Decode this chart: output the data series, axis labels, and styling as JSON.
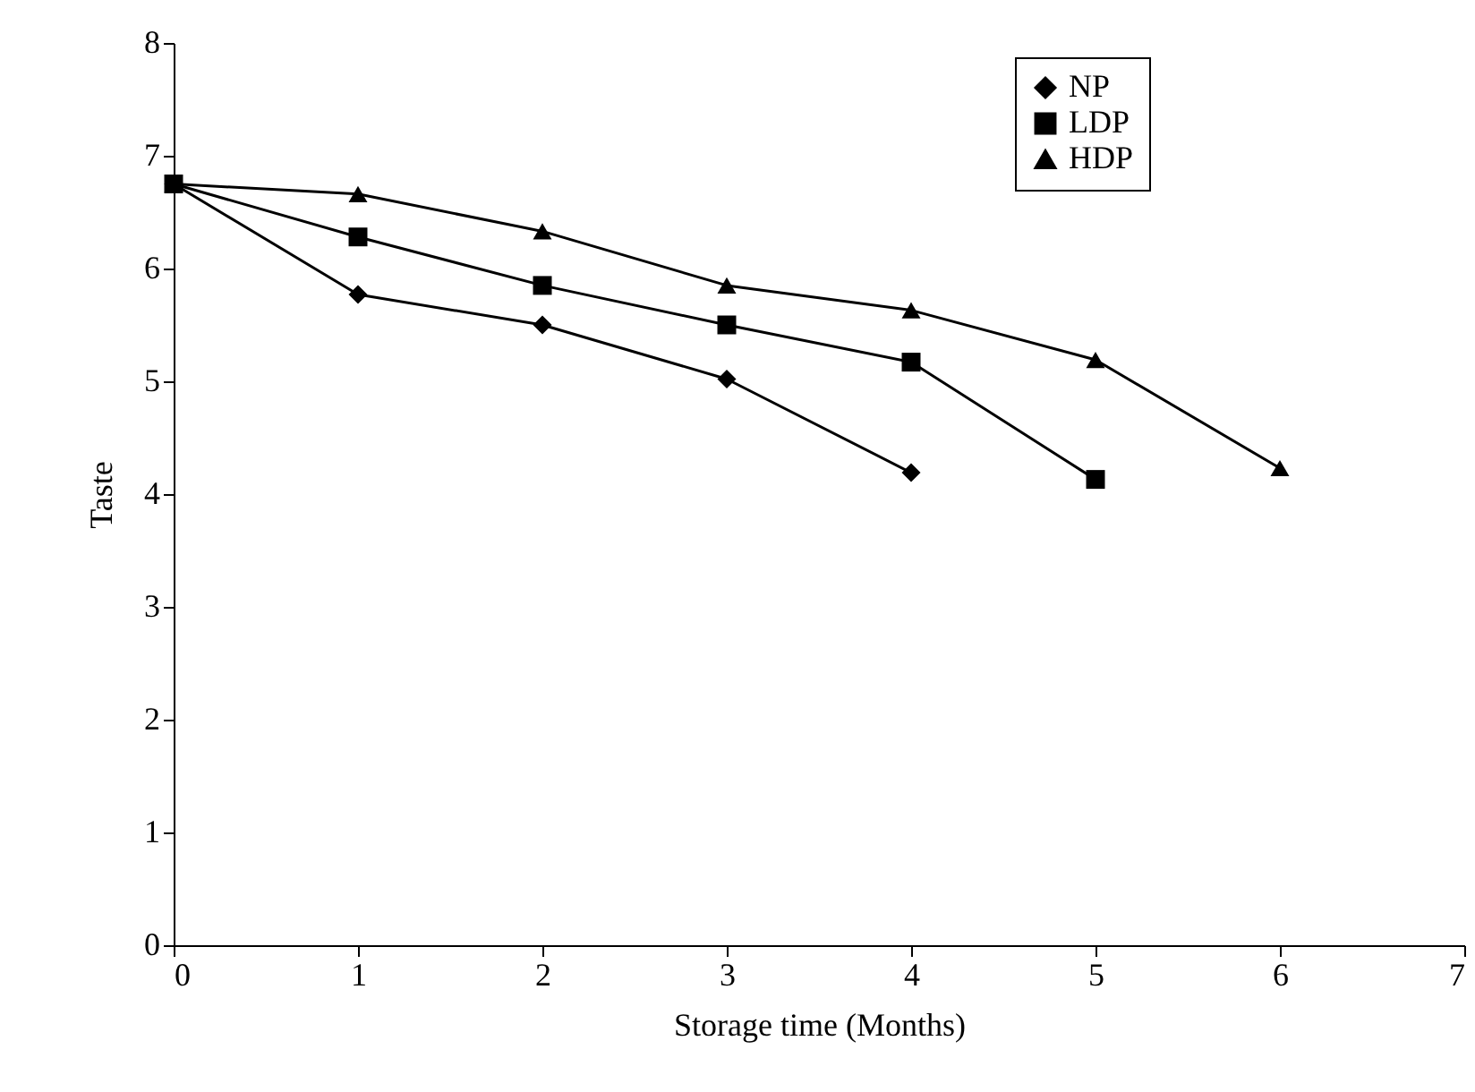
{
  "chart_data": {
    "type": "line",
    "xlabel": "Storage time (Months)",
    "ylabel": "Taste",
    "xlim": [
      0,
      7
    ],
    "xticks": [
      0,
      1,
      2,
      3,
      4,
      5,
      6,
      7
    ],
    "ylim": [
      0,
      8
    ],
    "yticks": [
      0,
      1,
      2,
      3,
      4,
      5,
      6,
      7,
      8
    ],
    "grid": false,
    "legend": "top right",
    "line_style": "solid",
    "series": [
      {
        "name": "NP",
        "color": "#000000",
        "marker": "diamond",
        "x": [
          0,
          1,
          2,
          3,
          4
        ],
        "values": [
          6.75,
          5.77,
          5.5,
          5.02,
          4.19
        ]
      },
      {
        "name": "LDP",
        "color": "#000000",
        "marker": "square",
        "x": [
          0,
          1,
          2,
          3,
          4,
          5
        ],
        "values": [
          6.75,
          6.28,
          5.85,
          5.5,
          5.17,
          4.13
        ]
      },
      {
        "name": "HDP",
        "color": "#000000",
        "marker": "triangle",
        "x": [
          0,
          1,
          2,
          3,
          4,
          5,
          6
        ],
        "values": [
          6.75,
          6.66,
          6.33,
          5.85,
          5.63,
          5.19,
          4.23
        ]
      }
    ]
  }
}
